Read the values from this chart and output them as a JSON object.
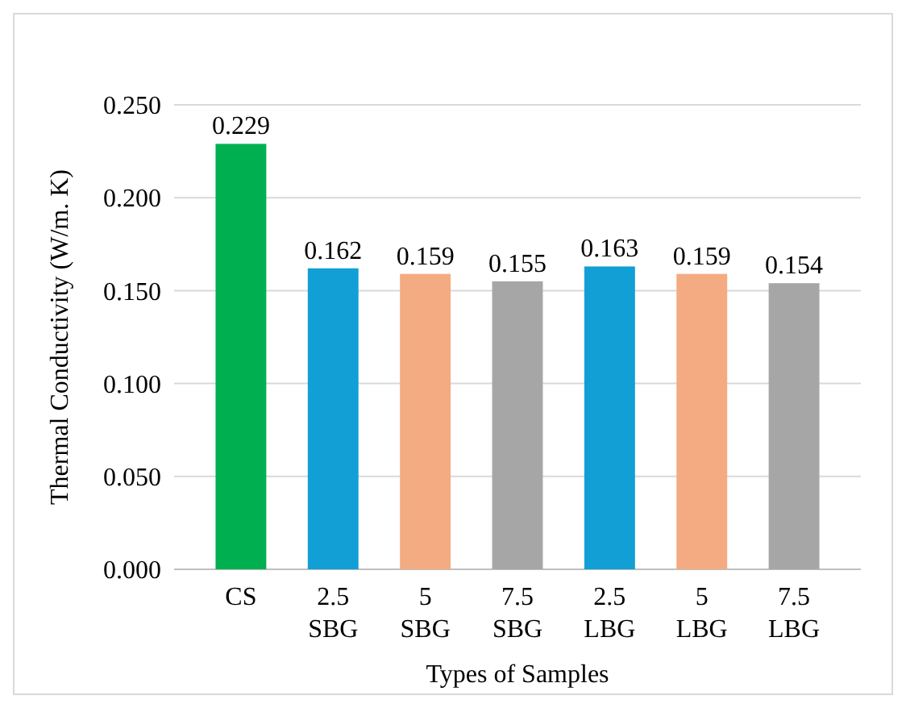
{
  "chart_data": {
    "type": "bar",
    "xlabel": "Types of Samples",
    "ylabel": "Thermal Conductivity (W/m. K)",
    "categories": [
      "CS",
      "2.5 SBG",
      "5 SBG",
      "7.5 SBG",
      "2.5 LBG",
      "5 LBG",
      "7.5 LBG"
    ],
    "values": [
      0.229,
      0.162,
      0.159,
      0.155,
      0.163,
      0.159,
      0.154
    ],
    "colors": [
      "#00b050",
      "#119fd6",
      "#f4ab82",
      "#a6a6a6",
      "#119fd6",
      "#f4ab82",
      "#a6a6a6"
    ],
    "ylim": [
      0,
      0.25
    ],
    "yticks": [
      {
        "value": 0,
        "label": "0.000"
      },
      {
        "value": 0.05,
        "label": "0.050"
      },
      {
        "value": 0.1,
        "label": "0.100"
      },
      {
        "value": 0.15,
        "label": "0.150"
      },
      {
        "value": 0.2,
        "label": "0.200"
      },
      {
        "value": 0.25,
        "label": "0.250"
      }
    ],
    "grid": "y",
    "data_labels": true
  }
}
